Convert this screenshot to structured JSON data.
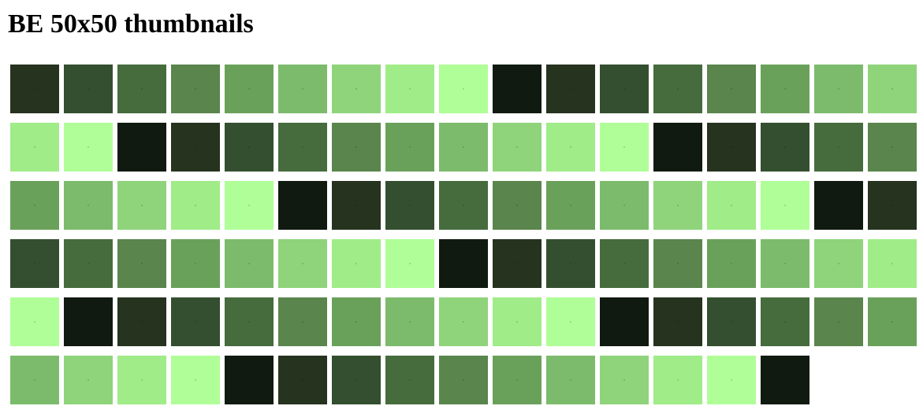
{
  "page": {
    "title": "BE 50x50 thumbnails"
  },
  "palette": [
    "#26331f",
    "#344f2f",
    "#466c3d",
    "#5a854c",
    "#6aa15a",
    "#7cbb6c",
    "#8fd47b",
    "#a0ec88",
    "#b0fe98",
    "#111a10"
  ],
  "thumbnails": [
    {
      "color": "#26331f"
    },
    {
      "color": "#344f2f"
    },
    {
      "color": "#466c3d"
    },
    {
      "color": "#5a854c"
    },
    {
      "color": "#6aa15a"
    },
    {
      "color": "#7cbb6c"
    },
    {
      "color": "#8fd47b"
    },
    {
      "color": "#a0ec88"
    },
    {
      "color": "#b0fe98"
    },
    {
      "color": "#111a10"
    },
    {
      "color": "#26331f"
    },
    {
      "color": "#344f2f"
    },
    {
      "color": "#466c3d"
    },
    {
      "color": "#5a854c"
    },
    {
      "color": "#6aa15a"
    },
    {
      "color": "#7cbb6c"
    },
    {
      "color": "#8fd47b"
    },
    {
      "color": "#a0ec88"
    },
    {
      "color": "#b0fe98"
    },
    {
      "color": "#111a10"
    },
    {
      "color": "#26331f"
    },
    {
      "color": "#344f2f"
    },
    {
      "color": "#466c3d"
    },
    {
      "color": "#5a854c"
    },
    {
      "color": "#6aa15a"
    },
    {
      "color": "#7cbb6c"
    },
    {
      "color": "#8fd47b"
    },
    {
      "color": "#a0ec88"
    },
    {
      "color": "#b0fe98"
    },
    {
      "color": "#111a10"
    },
    {
      "color": "#26331f"
    },
    {
      "color": "#344f2f"
    },
    {
      "color": "#466c3d"
    },
    {
      "color": "#5a854c"
    },
    {
      "color": "#6aa15a"
    },
    {
      "color": "#7cbb6c"
    },
    {
      "color": "#8fd47b"
    },
    {
      "color": "#a0ec88"
    },
    {
      "color": "#b0fe98"
    },
    {
      "color": "#111a10"
    },
    {
      "color": "#26331f"
    },
    {
      "color": "#344f2f"
    },
    {
      "color": "#466c3d"
    },
    {
      "color": "#5a854c"
    },
    {
      "color": "#6aa15a"
    },
    {
      "color": "#7cbb6c"
    },
    {
      "color": "#8fd47b"
    },
    {
      "color": "#a0ec88"
    },
    {
      "color": "#b0fe98"
    },
    {
      "color": "#111a10"
    },
    {
      "color": "#26331f"
    },
    {
      "color": "#344f2f"
    },
    {
      "color": "#466c3d"
    },
    {
      "color": "#5a854c"
    },
    {
      "color": "#6aa15a"
    },
    {
      "color": "#7cbb6c"
    },
    {
      "color": "#8fd47b"
    },
    {
      "color": "#a0ec88"
    },
    {
      "color": "#b0fe98"
    },
    {
      "color": "#111a10"
    },
    {
      "color": "#26331f"
    },
    {
      "color": "#344f2f"
    },
    {
      "color": "#466c3d"
    },
    {
      "color": "#5a854c"
    },
    {
      "color": "#6aa15a"
    },
    {
      "color": "#7cbb6c"
    },
    {
      "color": "#8fd47b"
    },
    {
      "color": "#a0ec88"
    },
    {
      "color": "#b0fe98"
    },
    {
      "color": "#111a10"
    },
    {
      "color": "#26331f"
    },
    {
      "color": "#344f2f"
    },
    {
      "color": "#466c3d"
    },
    {
      "color": "#5a854c"
    },
    {
      "color": "#6aa15a"
    },
    {
      "color": "#7cbb6c"
    },
    {
      "color": "#8fd47b"
    },
    {
      "color": "#a0ec88"
    },
    {
      "color": "#b0fe98"
    },
    {
      "color": "#111a10"
    },
    {
      "color": "#26331f"
    },
    {
      "color": "#344f2f"
    },
    {
      "color": "#466c3d"
    },
    {
      "color": "#5a854c"
    },
    {
      "color": "#6aa15a"
    },
    {
      "color": "#7cbb6c"
    },
    {
      "color": "#8fd47b"
    },
    {
      "color": "#a0ec88"
    },
    {
      "color": "#b0fe98"
    },
    {
      "color": "#111a10"
    },
    {
      "color": "#26331f"
    },
    {
      "color": "#344f2f"
    },
    {
      "color": "#466c3d"
    },
    {
      "color": "#5a854c"
    },
    {
      "color": "#6aa15a"
    },
    {
      "color": "#7cbb6c"
    },
    {
      "color": "#8fd47b"
    },
    {
      "color": "#a0ec88"
    },
    {
      "color": "#b0fe98"
    },
    {
      "color": "#111a10"
    }
  ]
}
